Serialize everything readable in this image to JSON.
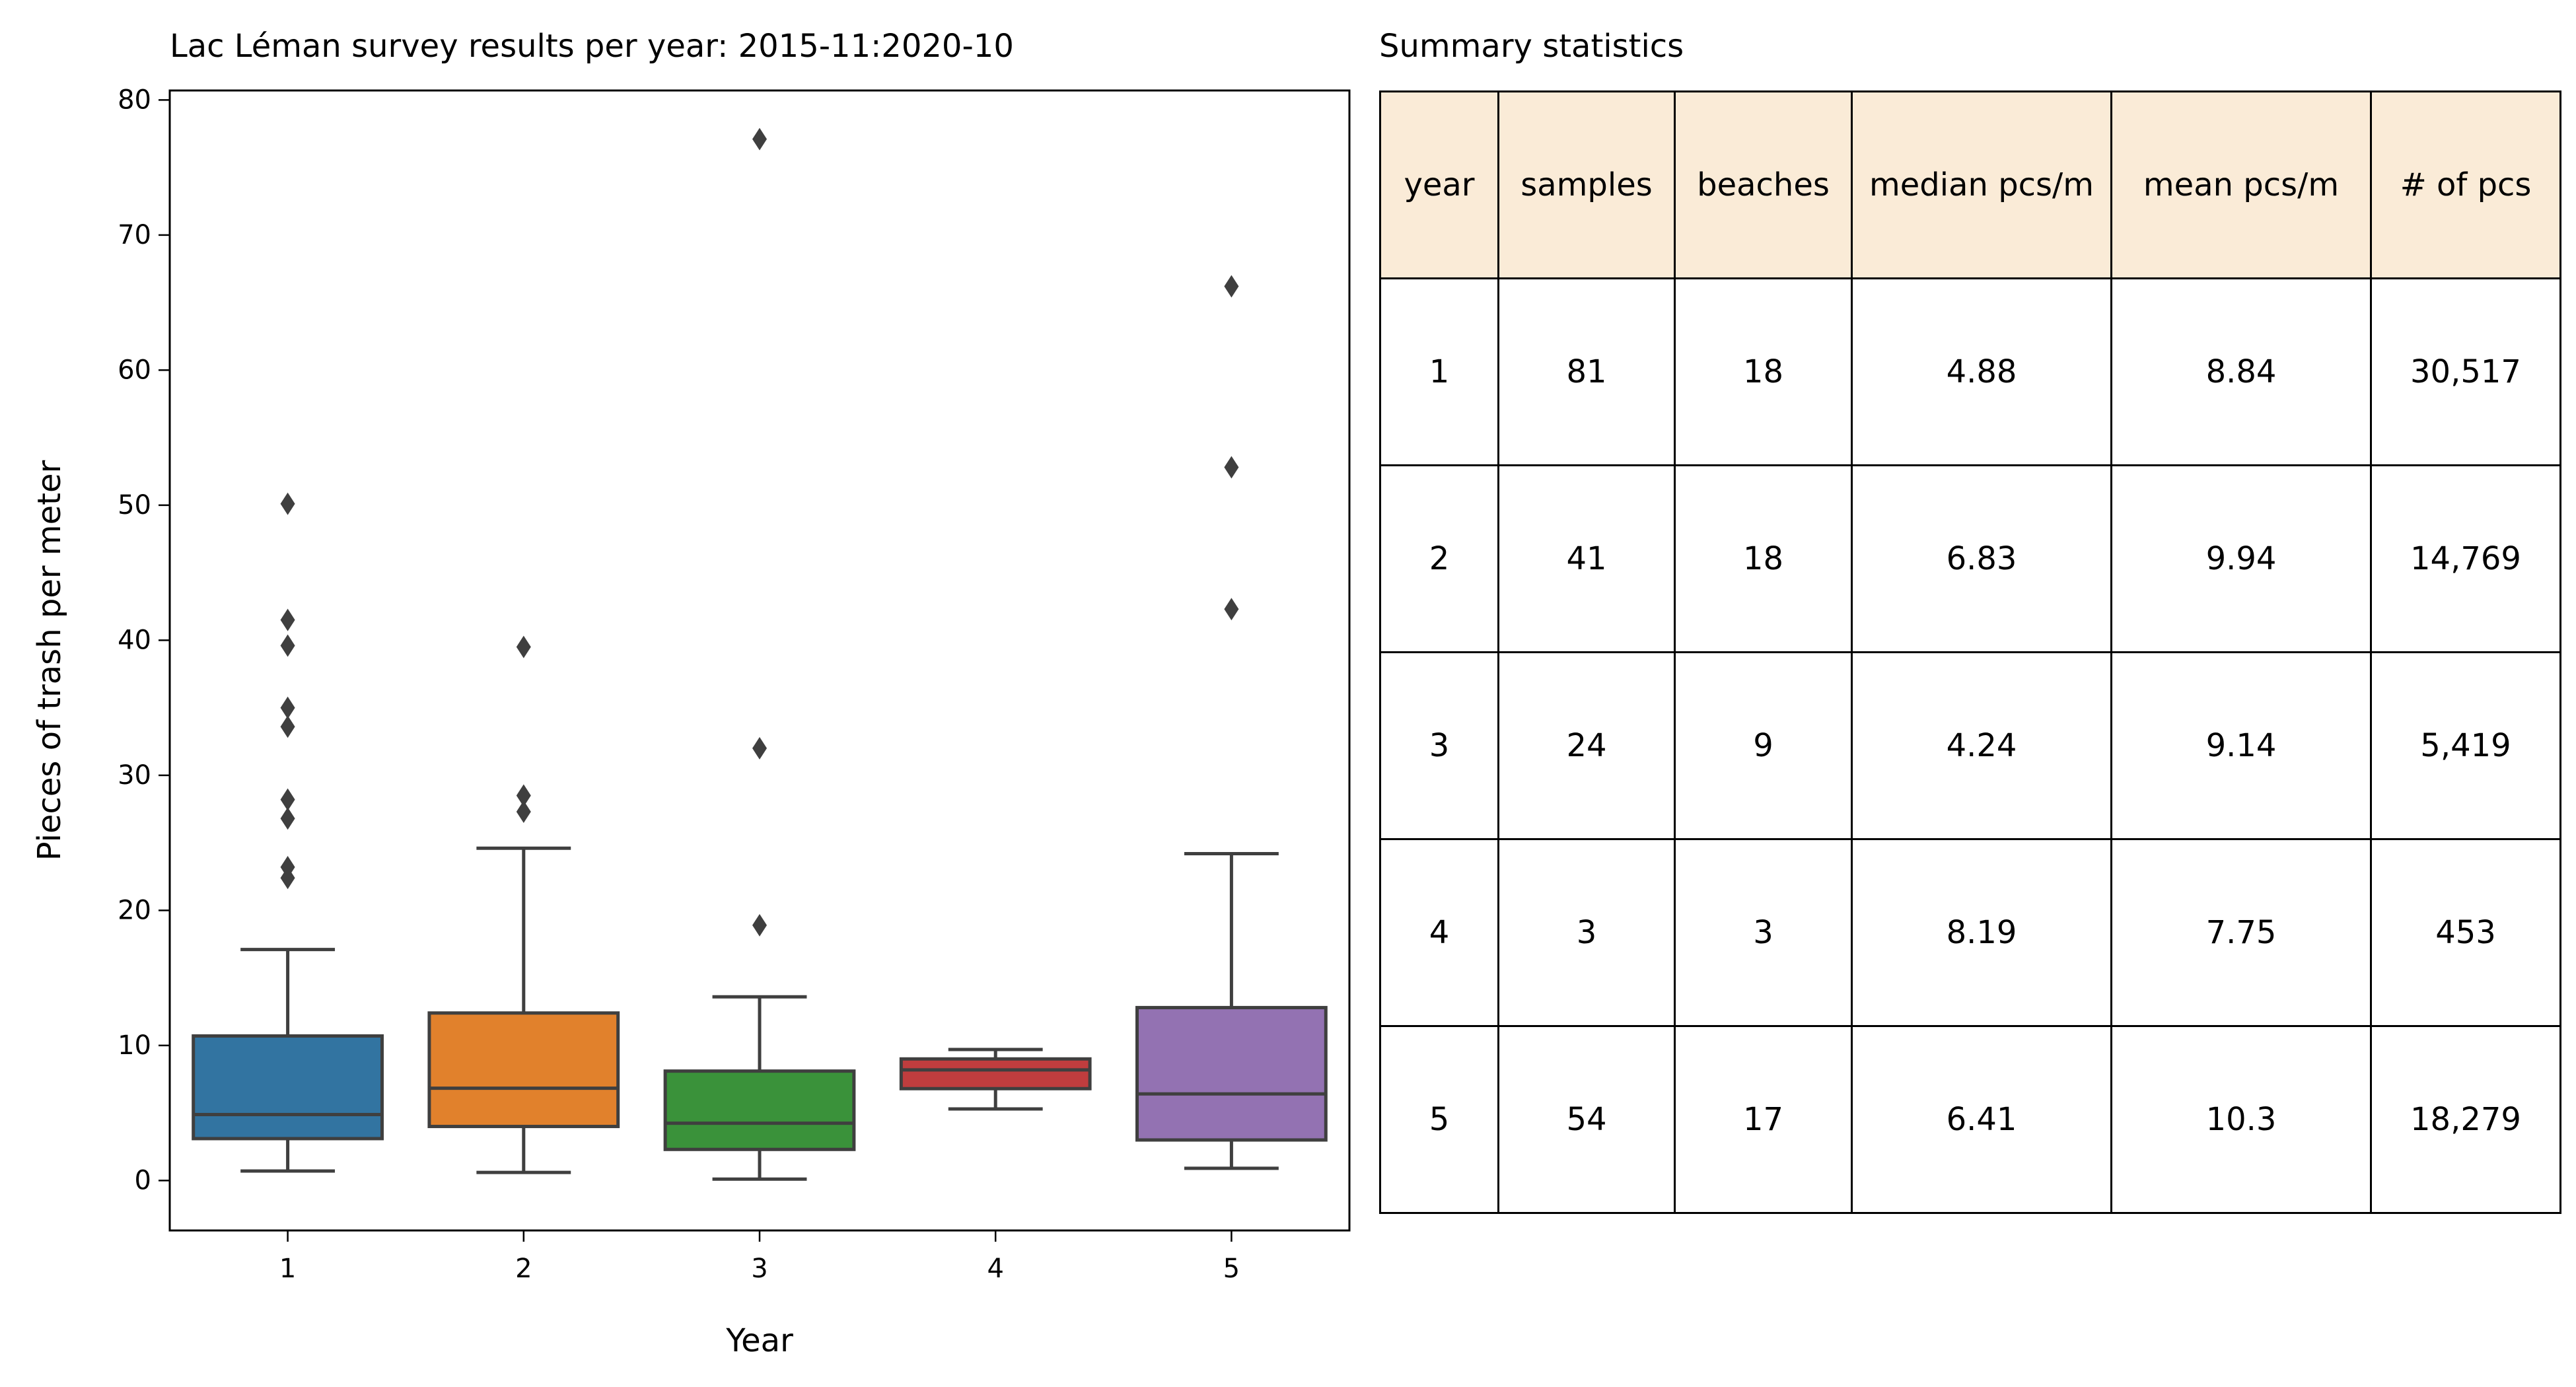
{
  "chart_data": [
    {
      "type": "box",
      "title": "Lac Léman survey results per year: 2015-11:2020-10",
      "xlabel": "Year",
      "ylabel": "Pieces of trash per meter",
      "ylim": [
        -3.7,
        80.7
      ],
      "yticks": [
        0,
        10,
        20,
        30,
        40,
        50,
        60,
        70,
        80
      ],
      "categories": [
        "1",
        "2",
        "3",
        "4",
        "5"
      ],
      "grid": false,
      "boxes": [
        {
          "category": "1",
          "color": "#3274a1",
          "whisker_low": 0.7,
          "q1": 3.1,
          "median": 4.88,
          "q3": 10.7,
          "whisker_high": 17.1,
          "outliers": [
            22.4,
            23.2,
            26.8,
            28.2,
            33.6,
            35.0,
            39.6,
            41.5,
            50.1
          ]
        },
        {
          "category": "2",
          "color": "#e1812c",
          "whisker_low": 0.6,
          "q1": 4.0,
          "median": 6.83,
          "q3": 12.4,
          "whisker_high": 24.6,
          "outliers": [
            27.3,
            28.5,
            39.5
          ]
        },
        {
          "category": "3",
          "color": "#3a923a",
          "whisker_low": 0.1,
          "q1": 2.3,
          "median": 4.24,
          "q3": 8.1,
          "whisker_high": 13.6,
          "outliers": [
            18.9,
            32.0,
            77.1
          ]
        },
        {
          "category": "4",
          "color": "#c03d3e",
          "whisker_low": 5.3,
          "q1": 6.8,
          "median": 8.19,
          "q3": 9.0,
          "whisker_high": 9.7,
          "outliers": []
        },
        {
          "category": "5",
          "color": "#9372b2",
          "whisker_low": 0.9,
          "q1": 3.0,
          "median": 6.41,
          "q3": 12.8,
          "whisker_high": 24.2,
          "outliers": [
            42.3,
            52.8,
            66.2
          ]
        }
      ]
    },
    {
      "type": "table",
      "title": "Summary statistics",
      "header_color": "#faebd7",
      "columns": [
        "year",
        "samples",
        "beaches",
        "median pcs/m",
        "mean pcs/m",
        "# of pcs"
      ],
      "rows": [
        [
          "1",
          "81",
          "18",
          "4.88",
          "8.84",
          "30,517"
        ],
        [
          "2",
          "41",
          "18",
          "6.83",
          "9.94",
          "14,769"
        ],
        [
          "3",
          "24",
          "9",
          "4.24",
          "9.14",
          "5,419"
        ],
        [
          "4",
          "3",
          "3",
          "8.19",
          "7.75",
          "453"
        ],
        [
          "5",
          "54",
          "17",
          "6.41",
          "10.3",
          "18,279"
        ]
      ]
    }
  ]
}
